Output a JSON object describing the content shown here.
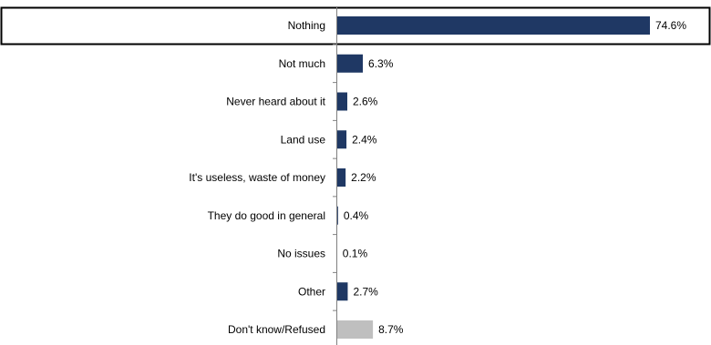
{
  "chart_data": {
    "type": "bar",
    "orientation": "horizontal",
    "categories": [
      "Nothing",
      "Not much",
      "Never heard about it",
      "Land use",
      "It's useless, waste of money",
      "They do good in general",
      "No issues",
      "Other",
      "Don't know/Refused"
    ],
    "values": [
      74.6,
      6.3,
      2.6,
      2.4,
      2.2,
      0.4,
      0.1,
      2.7,
      8.7
    ],
    "value_labels": [
      "74.6%",
      "6.3%",
      "2.6%",
      "2.4%",
      "2.2%",
      "0.4%",
      "0.1%",
      "2.7%",
      "8.7%"
    ],
    "xlim": [
      0,
      100
    ],
    "highlighted_category": "Nothing",
    "colors": {
      "bar": "#1f3864",
      "dont_know_bar": "#bfbfbf",
      "axis": "#808080",
      "highlight_border": "#000000"
    },
    "grid": false,
    "legend": "none"
  }
}
